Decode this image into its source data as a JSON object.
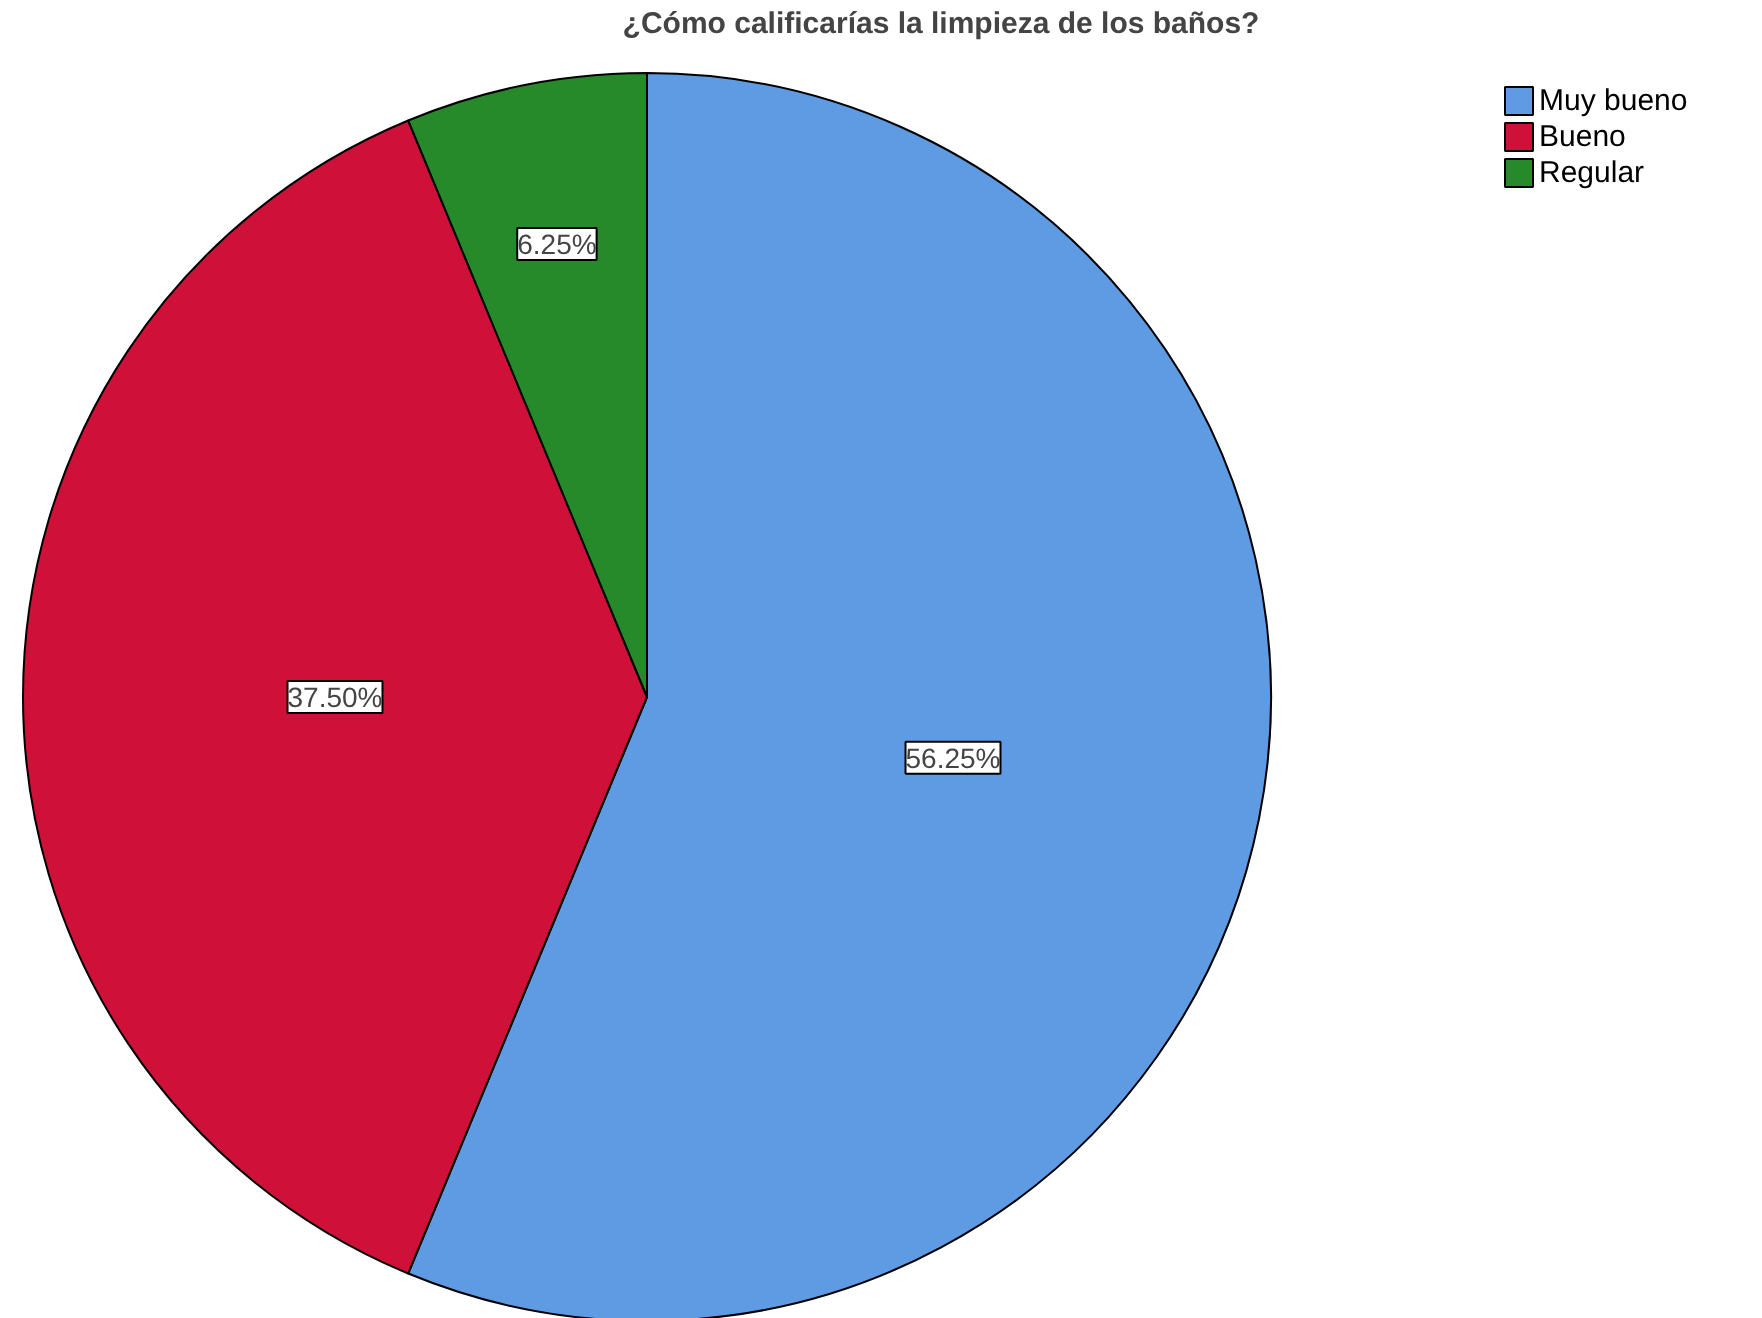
{
  "chart_data": {
    "type": "pie",
    "title": "¿Cómo calificarías la limpieza de los baños?",
    "categories": [
      "Muy bueno",
      "Bueno",
      "Regular"
    ],
    "values": [
      56.25,
      37.5,
      6.25
    ],
    "colors": [
      "#5f9be3",
      "#cf1038",
      "#26892a"
    ],
    "value_labels": [
      "56.25%",
      "37.50%",
      "6.25%"
    ],
    "legend": "top right"
  }
}
